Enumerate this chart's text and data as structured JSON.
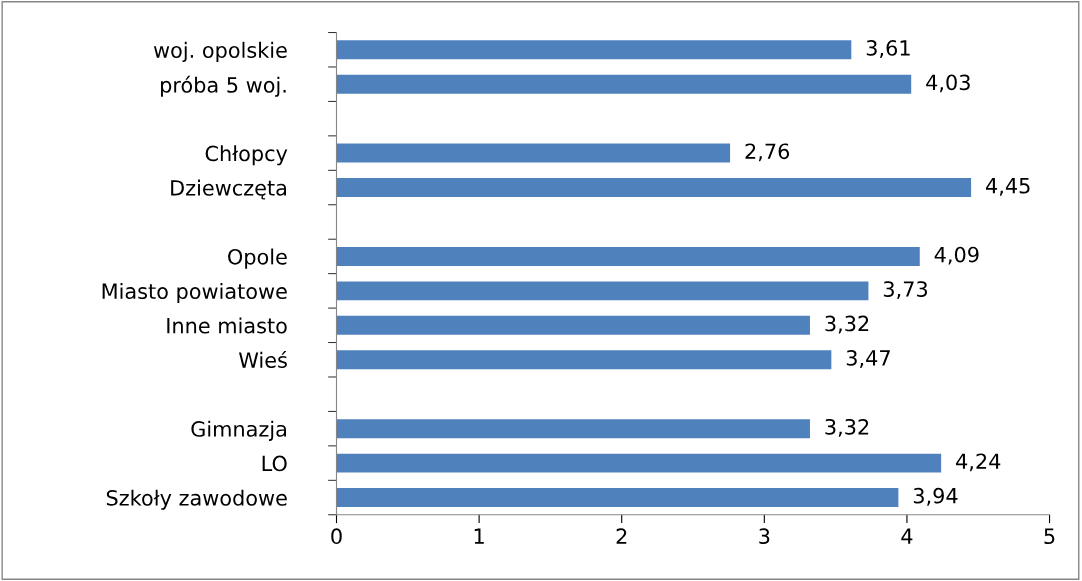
{
  "chart_data": {
    "type": "bar",
    "orientation": "horizontal",
    "color": "#4f81bd",
    "categories": [
      "woj. opolskie",
      "próba 5 woj.",
      null,
      "Chłopcy",
      "Dziewczęta",
      null,
      "Opole",
      "Miasto powiatowe",
      "Inne miasto",
      "Wieś",
      null,
      "Gimnazja",
      "LO",
      "Szkoły zawodowe"
    ],
    "values": [
      3.61,
      4.03,
      null,
      2.76,
      4.45,
      null,
      4.09,
      3.73,
      3.32,
      3.47,
      null,
      3.32,
      4.24,
      3.94
    ],
    "value_labels": [
      "3,61",
      "4,03",
      null,
      "2,76",
      "4,45",
      null,
      "4,09",
      "3,73",
      "3,32",
      "3,47",
      null,
      "3,32",
      "4,24",
      "3,94"
    ],
    "xlim": [
      0,
      5
    ],
    "xticks": [
      0,
      1,
      2,
      3,
      4,
      5
    ],
    "grid": false,
    "legend": false
  }
}
